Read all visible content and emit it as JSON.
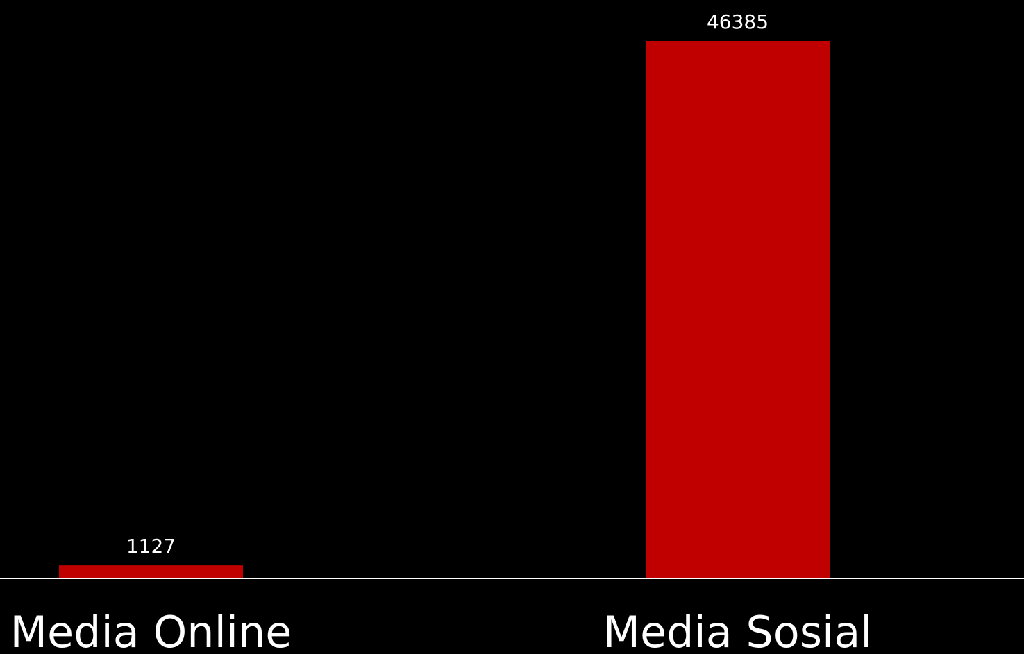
{
  "chart_data": {
    "type": "bar",
    "categories": [
      "Media Online",
      "Media Sosial"
    ],
    "values": [
      1127,
      46385
    ],
    "data_labels": [
      "1127",
      "46385"
    ],
    "title": "",
    "xlabel": "",
    "ylabel": "",
    "ylim": [
      0,
      46385
    ],
    "grid": false,
    "legend": "none",
    "bar_color": "#c00000",
    "background_color": "#000000",
    "axis_color": "#ffffff",
    "text_color": "#ffffff"
  }
}
